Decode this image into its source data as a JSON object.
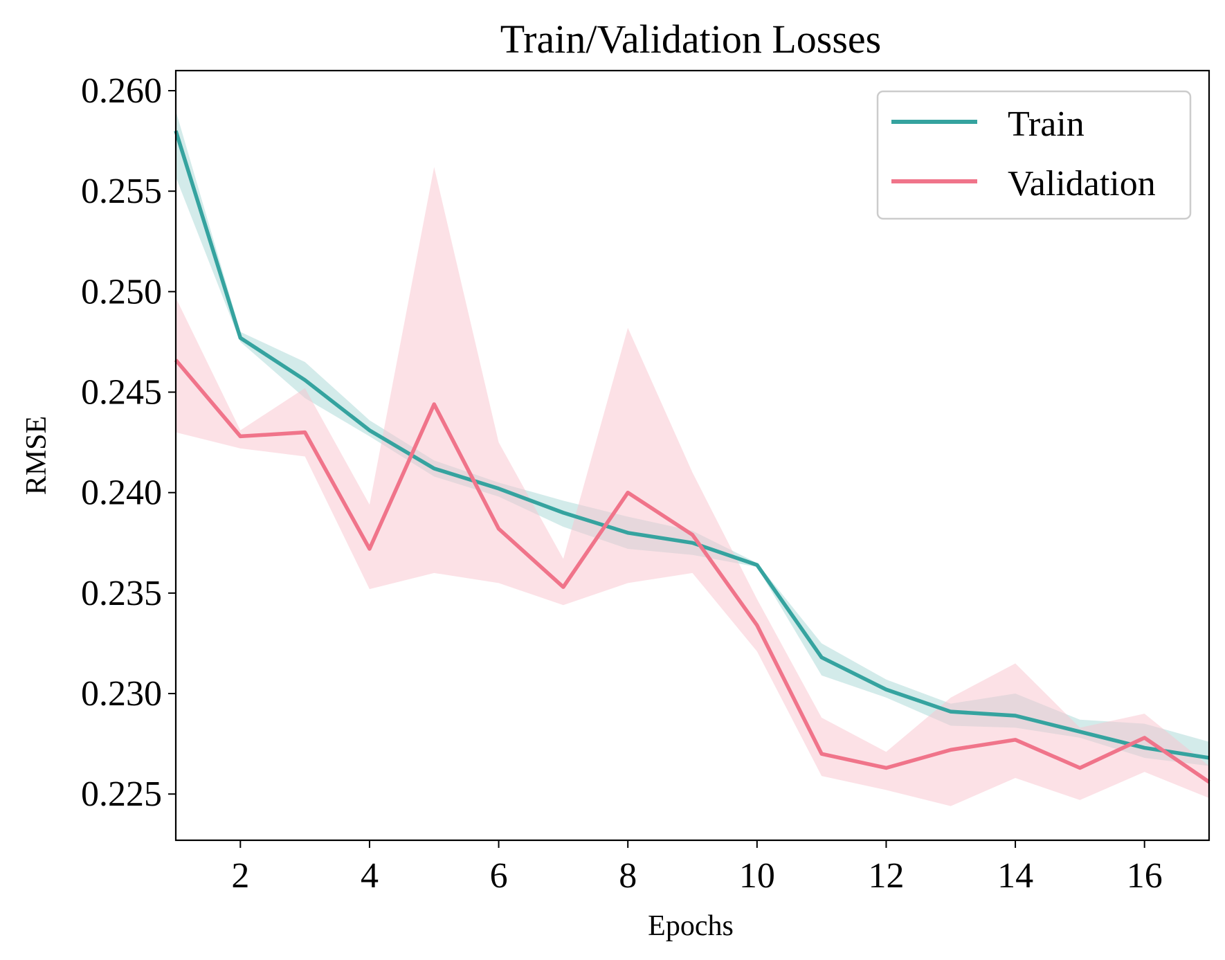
{
  "chart_data": {
    "type": "line",
    "title": "Train/Validation Losses",
    "xlabel": "Epochs",
    "ylabel": "RMSE",
    "xlim": [
      1,
      17
    ],
    "ylim": [
      0.2227,
      0.261
    ],
    "xticks": [
      2,
      4,
      6,
      8,
      10,
      12,
      14,
      16
    ],
    "xtick_labels": [
      "2",
      "4",
      "6",
      "8",
      "10",
      "12",
      "14",
      "16"
    ],
    "yticks": [
      0.225,
      0.23,
      0.235,
      0.24,
      0.245,
      0.25,
      0.255,
      0.26
    ],
    "ytick_labels": [
      "0.225",
      "0.230",
      "0.235",
      "0.240",
      "0.245",
      "0.250",
      "0.255",
      "0.260"
    ],
    "grid": false,
    "legend_position": "top-right",
    "x": [
      1,
      2,
      3,
      4,
      5,
      6,
      7,
      8,
      9,
      10,
      11,
      12,
      13,
      14,
      15,
      16,
      17
    ],
    "series": [
      {
        "name": "Train",
        "color": "#35a39f",
        "band_color": "#35a39f",
        "values": [
          0.258,
          0.2477,
          0.2456,
          0.2431,
          0.2412,
          0.2402,
          0.239,
          0.238,
          0.2375,
          0.2364,
          0.2318,
          0.2302,
          0.2291,
          0.2289,
          0.2281,
          0.2273,
          0.2268
        ],
        "lower": [
          0.2557,
          0.2475,
          0.2447,
          0.2428,
          0.2408,
          0.2398,
          0.2383,
          0.2372,
          0.2369,
          0.2363,
          0.2309,
          0.2298,
          0.2284,
          0.2283,
          0.2278,
          0.2268,
          0.2264
        ],
        "upper": [
          0.259,
          0.248,
          0.2465,
          0.2436,
          0.2416,
          0.2405,
          0.2396,
          0.2388,
          0.2381,
          0.2365,
          0.2325,
          0.2307,
          0.2295,
          0.23,
          0.2287,
          0.2285,
          0.2276
        ]
      },
      {
        "name": "Validation",
        "color": "#f0748a",
        "band_color": "#f9c3cd",
        "values": [
          0.2466,
          0.2428,
          0.243,
          0.2372,
          0.2444,
          0.2382,
          0.2353,
          0.24,
          0.2379,
          0.2334,
          0.227,
          0.2263,
          0.2272,
          0.2277,
          0.2263,
          0.2278,
          0.2256
        ],
        "lower": [
          0.243,
          0.2422,
          0.2418,
          0.2352,
          0.236,
          0.2355,
          0.2344,
          0.2355,
          0.236,
          0.2321,
          0.2259,
          0.2252,
          0.2244,
          0.2258,
          0.2247,
          0.2261,
          0.2248
        ],
        "upper": [
          0.2497,
          0.2431,
          0.2452,
          0.2394,
          0.2562,
          0.2425,
          0.2367,
          0.2482,
          0.241,
          0.2347,
          0.2288,
          0.2271,
          0.2298,
          0.2315,
          0.2283,
          0.229,
          0.2264
        ]
      }
    ]
  }
}
